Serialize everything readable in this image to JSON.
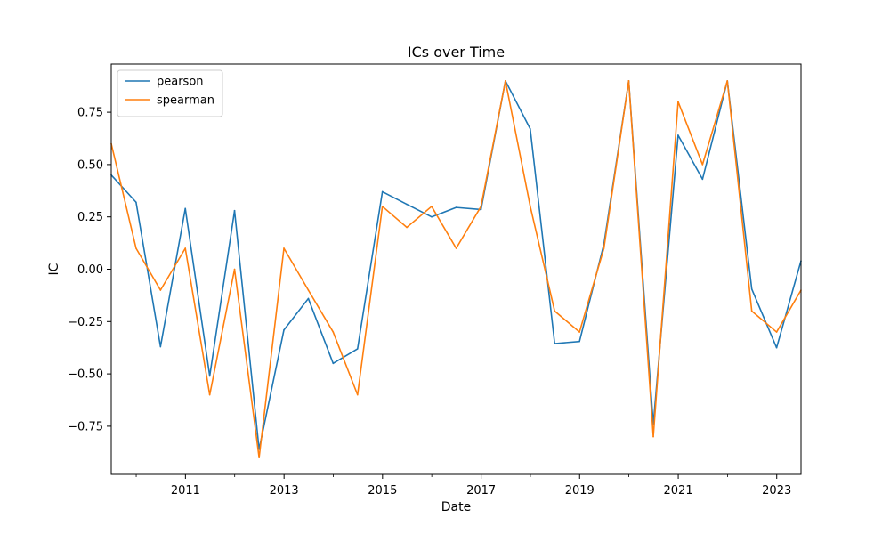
{
  "chart_data": {
    "type": "line",
    "title": "ICs over Time",
    "xlabel": "Date",
    "ylabel": "IC",
    "x": [
      "2009-06-30",
      "2009-12-31",
      "2010-06-30",
      "2010-12-31",
      "2011-06-30",
      "2011-12-31",
      "2012-06-30",
      "2012-12-31",
      "2013-06-30",
      "2013-12-31",
      "2014-06-30",
      "2014-12-31",
      "2015-06-30",
      "2015-12-31",
      "2016-06-30",
      "2016-12-31",
      "2017-06-30",
      "2017-12-31",
      "2018-06-30",
      "2018-12-31",
      "2019-06-30",
      "2019-12-31",
      "2020-06-30",
      "2020-12-31",
      "2021-06-30",
      "2021-12-31",
      "2022-06-30",
      "2022-12-31",
      "2023-06-30"
    ],
    "xlim": [
      "2009-06-30",
      "2023-06-30"
    ],
    "xticks": [
      {
        "date": "2011-01-01",
        "label": "2011"
      },
      {
        "date": "2013-01-01",
        "label": "2013"
      },
      {
        "date": "2015-01-01",
        "label": "2015"
      },
      {
        "date": "2017-01-01",
        "label": "2017"
      },
      {
        "date": "2019-01-01",
        "label": "2019"
      },
      {
        "date": "2021-01-01",
        "label": "2021"
      },
      {
        "date": "2023-01-01",
        "label": "2023"
      }
    ],
    "ylim": [
      -0.98,
      0.98
    ],
    "yticks": [
      {
        "value": -0.75,
        "label": "−0.75"
      },
      {
        "value": -0.5,
        "label": "−0.50"
      },
      {
        "value": -0.25,
        "label": "−0.25"
      },
      {
        "value": 0.0,
        "label": "0.00"
      },
      {
        "value": 0.25,
        "label": "0.25"
      },
      {
        "value": 0.5,
        "label": "0.50"
      },
      {
        "value": 0.75,
        "label": "0.75"
      }
    ],
    "grid": false,
    "legend_position": "top-left",
    "series": [
      {
        "name": "pearson",
        "color": "#1f77b4",
        "values": [
          0.45,
          0.32,
          -0.37,
          0.29,
          -0.51,
          0.28,
          -0.86,
          -0.29,
          -0.14,
          -0.45,
          -0.38,
          0.37,
          0.31,
          0.25,
          0.295,
          0.285,
          0.9,
          0.67,
          -0.355,
          -0.345,
          0.12,
          0.9,
          -0.74,
          0.64,
          0.43,
          0.9,
          -0.095,
          -0.375,
          0.04
        ]
      },
      {
        "name": "spearman",
        "color": "#ff7f0e",
        "values": [
          0.6,
          0.1,
          -0.1,
          0.1,
          -0.6,
          0.0,
          -0.9,
          0.1,
          -0.1,
          -0.3,
          -0.6,
          0.3,
          0.2,
          0.3,
          0.1,
          0.3,
          0.9,
          0.3,
          -0.2,
          -0.3,
          0.1,
          0.9,
          -0.8,
          0.8,
          0.5,
          0.9,
          -0.2,
          -0.3,
          -0.1
        ]
      }
    ]
  }
}
